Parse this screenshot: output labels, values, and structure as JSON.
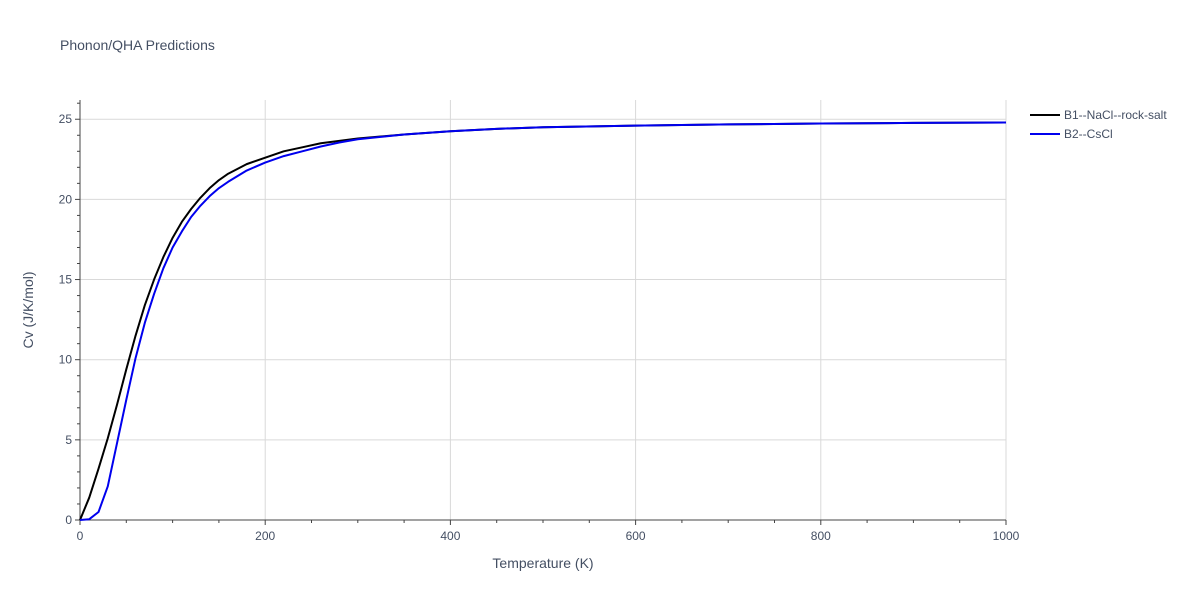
{
  "chart_data": {
    "type": "line",
    "title": "Phonon/QHA Predictions",
    "xlabel": "Temperature (K)",
    "ylabel": "Cv (J/K/mol)",
    "xlim": [
      0,
      1000
    ],
    "ylim": [
      0,
      26.2
    ],
    "xticks": [
      0,
      200,
      400,
      600,
      800,
      1000
    ],
    "yticks": [
      0,
      5,
      10,
      15,
      20,
      25
    ],
    "grid": true,
    "legend_position": "top-right",
    "series": [
      {
        "name": "B1--NaCl--rock-salt",
        "color": "#000000",
        "x": [
          0,
          10,
          20,
          30,
          40,
          50,
          60,
          70,
          80,
          90,
          100,
          110,
          120,
          130,
          140,
          150,
          160,
          180,
          200,
          220,
          240,
          260,
          280,
          300,
          350,
          400,
          450,
          500,
          600,
          700,
          800,
          900,
          1000
        ],
        "y": [
          0,
          1.4,
          3.2,
          5.1,
          7.2,
          9.4,
          11.5,
          13.4,
          15.0,
          16.4,
          17.6,
          18.6,
          19.4,
          20.1,
          20.7,
          21.2,
          21.6,
          22.2,
          22.6,
          23.0,
          23.25,
          23.5,
          23.65,
          23.8,
          24.05,
          24.25,
          24.4,
          24.5,
          24.6,
          24.68,
          24.73,
          24.77,
          24.8
        ]
      },
      {
        "name": "B2--CsCl",
        "color": "#0000ee",
        "x": [
          0,
          10,
          20,
          30,
          40,
          50,
          60,
          70,
          80,
          90,
          100,
          110,
          120,
          130,
          140,
          150,
          160,
          180,
          200,
          220,
          240,
          260,
          280,
          300,
          350,
          400,
          450,
          500,
          600,
          700,
          800,
          900,
          1000
        ],
        "y": [
          0,
          0.05,
          0.5,
          2.1,
          4.8,
          7.5,
          10.1,
          12.3,
          14.1,
          15.7,
          17.0,
          18.0,
          18.9,
          19.6,
          20.2,
          20.7,
          21.1,
          21.8,
          22.3,
          22.7,
          23.0,
          23.3,
          23.55,
          23.75,
          24.05,
          24.25,
          24.4,
          24.5,
          24.6,
          24.68,
          24.73,
          24.77,
          24.8
        ]
      }
    ]
  }
}
